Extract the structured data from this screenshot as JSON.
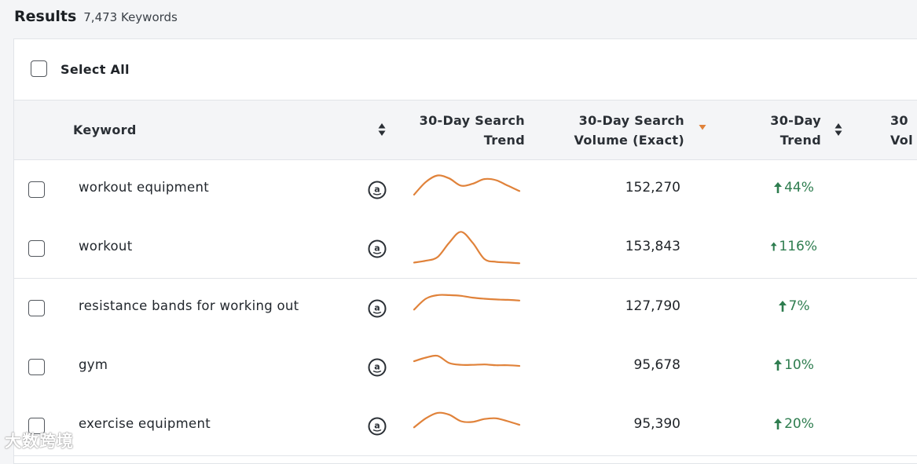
{
  "header": {
    "title": "Results",
    "count": "7,473 Keywords"
  },
  "select_all": {
    "label": "Select All"
  },
  "columns": {
    "keyword": "Keyword",
    "search_trend_line1": "30-Day Search",
    "search_trend_line2": "Trend",
    "volume_line1": "30-Day Search",
    "volume_line2": "Volume (Exact)",
    "trend_line1": "30-Day",
    "trend_line2": "Trend",
    "next_line1": "30",
    "next_line2": "Vol"
  },
  "colors": {
    "sparkline": "#e0823a",
    "trend_up": "#2e7d4f",
    "sort_active": "#e0823a"
  },
  "rows": [
    {
      "keyword": "workout equipment",
      "volume": "152,270",
      "trend": "44%",
      "spark": [
        0.65,
        0.3,
        0.12,
        0.2,
        0.4,
        0.35,
        0.22,
        0.25,
        0.4,
        0.55
      ]
    },
    {
      "keyword": "workout",
      "volume": "153,843",
      "trend": "116%",
      "spark": [
        0.9,
        0.85,
        0.75,
        0.35,
        0.05,
        0.35,
        0.8,
        0.88,
        0.9,
        0.92
      ]
    },
    {
      "keyword": "resistance bands for working out",
      "volume": "127,790",
      "trend": "7%",
      "spark": [
        0.55,
        0.25,
        0.15,
        0.15,
        0.17,
        0.22,
        0.25,
        0.27,
        0.28,
        0.3
      ]
    },
    {
      "keyword": "gym",
      "volume": "95,678",
      "trend": "10%",
      "spark": [
        0.35,
        0.25,
        0.2,
        0.4,
        0.45,
        0.45,
        0.44,
        0.46,
        0.46,
        0.48
      ]
    },
    {
      "keyword": "exercise equipment",
      "volume": "95,390",
      "trend": "20%",
      "spark": [
        0.55,
        0.3,
        0.15,
        0.2,
        0.38,
        0.4,
        0.32,
        0.3,
        0.38,
        0.48
      ]
    }
  ],
  "watermark": "大数跨境"
}
